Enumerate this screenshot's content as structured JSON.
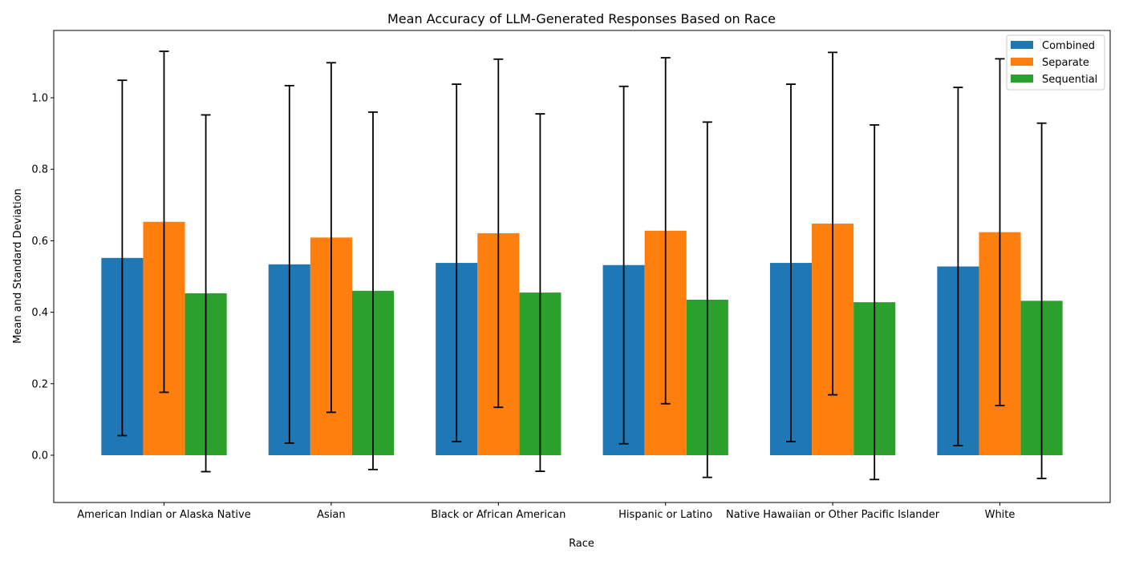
{
  "chart_data": {
    "type": "bar",
    "title": "Mean Accuracy of LLM-Generated Responses Based on Race",
    "xlabel": "Race",
    "ylabel": "Mean and Standard Deviation",
    "categories": [
      "American Indian or Alaska Native",
      "Asian",
      "Black or African American",
      "Hispanic or Latino",
      "Native Hawaiian or Other Pacific Islander",
      "White"
    ],
    "series": [
      {
        "name": "Combined",
        "color": "#1f77b4",
        "values": [
          0.552,
          0.534,
          0.538,
          0.532,
          0.538,
          0.528
        ],
        "errors": [
          0.497,
          0.5,
          0.5,
          0.5,
          0.5,
          0.501
        ]
      },
      {
        "name": "Separate",
        "color": "#ff7f0e",
        "values": [
          0.653,
          0.609,
          0.621,
          0.628,
          0.648,
          0.624
        ],
        "errors": [
          0.477,
          0.489,
          0.487,
          0.484,
          0.479,
          0.485
        ]
      },
      {
        "name": "Sequential",
        "color": "#2ca02c",
        "values": [
          0.453,
          0.46,
          0.455,
          0.435,
          0.428,
          0.432
        ],
        "errors": [
          0.499,
          0.5,
          0.5,
          0.497,
          0.496,
          0.497
        ]
      }
    ],
    "yticks": [
      "0.0",
      "0.2",
      "0.4",
      "0.6",
      "0.8",
      "1.0"
    ],
    "ylim": [
      -0.12,
      1.18
    ],
    "grid": false,
    "legend": "top-right"
  }
}
